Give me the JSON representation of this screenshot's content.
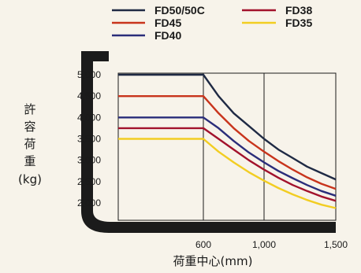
{
  "chart_data": {
    "type": "line",
    "xlabel": "荷重中心(mm)",
    "ylabel_lines": [
      "許",
      "容",
      "荷",
      "重",
      "(kg)"
    ],
    "x_ticks": [
      600,
      1000,
      1500
    ],
    "x_tick_labels": [
      "600",
      "1,000",
      "1,500"
    ],
    "y_ticks": [
      2000,
      2500,
      3000,
      3500,
      4000,
      4500,
      5000
    ],
    "y_tick_labels": [
      "2,000",
      "2,500",
      "3,000",
      "3,500",
      "4,000",
      "4,500",
      "5,000"
    ],
    "ylim": [
      2000,
      5000
    ],
    "grid": true,
    "legend_position": "top",
    "series": [
      {
        "name": "FD50/50C",
        "color": "#1f2a44",
        "points": [
          [
            0,
            5000
          ],
          [
            600,
            5000
          ],
          [
            700,
            4500
          ],
          [
            800,
            4100
          ],
          [
            900,
            3800
          ],
          [
            1000,
            3500
          ],
          [
            1100,
            3250
          ],
          [
            1200,
            3050
          ],
          [
            1300,
            2850
          ],
          [
            1400,
            2700
          ],
          [
            1500,
            2550
          ]
        ]
      },
      {
        "name": "FD45",
        "color": "#c8341c",
        "points": [
          [
            0,
            4500
          ],
          [
            600,
            4500
          ],
          [
            700,
            4100
          ],
          [
            800,
            3750
          ],
          [
            900,
            3450
          ],
          [
            1000,
            3200
          ],
          [
            1100,
            2980
          ],
          [
            1200,
            2780
          ],
          [
            1300,
            2600
          ],
          [
            1400,
            2450
          ],
          [
            1500,
            2330
          ]
        ]
      },
      {
        "name": "FD40",
        "color": "#2a2d7a",
        "points": [
          [
            0,
            4000
          ],
          [
            600,
            4000
          ],
          [
            700,
            3750
          ],
          [
            800,
            3450
          ],
          [
            900,
            3180
          ],
          [
            1000,
            2950
          ],
          [
            1100,
            2750
          ],
          [
            1200,
            2580
          ],
          [
            1300,
            2420
          ],
          [
            1400,
            2280
          ],
          [
            1500,
            2170
          ]
        ]
      },
      {
        "name": "FD38",
        "color": "#a2122c",
        "points": [
          [
            0,
            3750
          ],
          [
            600,
            3750
          ],
          [
            700,
            3500
          ],
          [
            800,
            3250
          ],
          [
            900,
            3000
          ],
          [
            1000,
            2780
          ],
          [
            1100,
            2590
          ],
          [
            1200,
            2420
          ],
          [
            1300,
            2280
          ],
          [
            1400,
            2150
          ],
          [
            1500,
            2050
          ]
        ]
      },
      {
        "name": "FD35",
        "color": "#f2cd22",
        "points": [
          [
            0,
            3500
          ],
          [
            600,
            3500
          ],
          [
            700,
            3200
          ],
          [
            800,
            2950
          ],
          [
            900,
            2720
          ],
          [
            1000,
            2520
          ],
          [
            1100,
            2350
          ],
          [
            1200,
            2200
          ],
          [
            1300,
            2070
          ],
          [
            1400,
            1960
          ],
          [
            1500,
            1880
          ]
        ]
      }
    ]
  },
  "legend": [
    {
      "name": "FD50/50C",
      "color": "#1f2a44",
      "column": 0,
      "row": 0
    },
    {
      "name": "FD45",
      "color": "#c8341c",
      "column": 0,
      "row": 1
    },
    {
      "name": "FD40",
      "color": "#2a2d7a",
      "column": 0,
      "row": 2
    },
    {
      "name": "FD38",
      "color": "#a2122c",
      "column": 1,
      "row": 0
    },
    {
      "name": "FD35",
      "color": "#f2cd22",
      "column": 1,
      "row": 1
    }
  ]
}
